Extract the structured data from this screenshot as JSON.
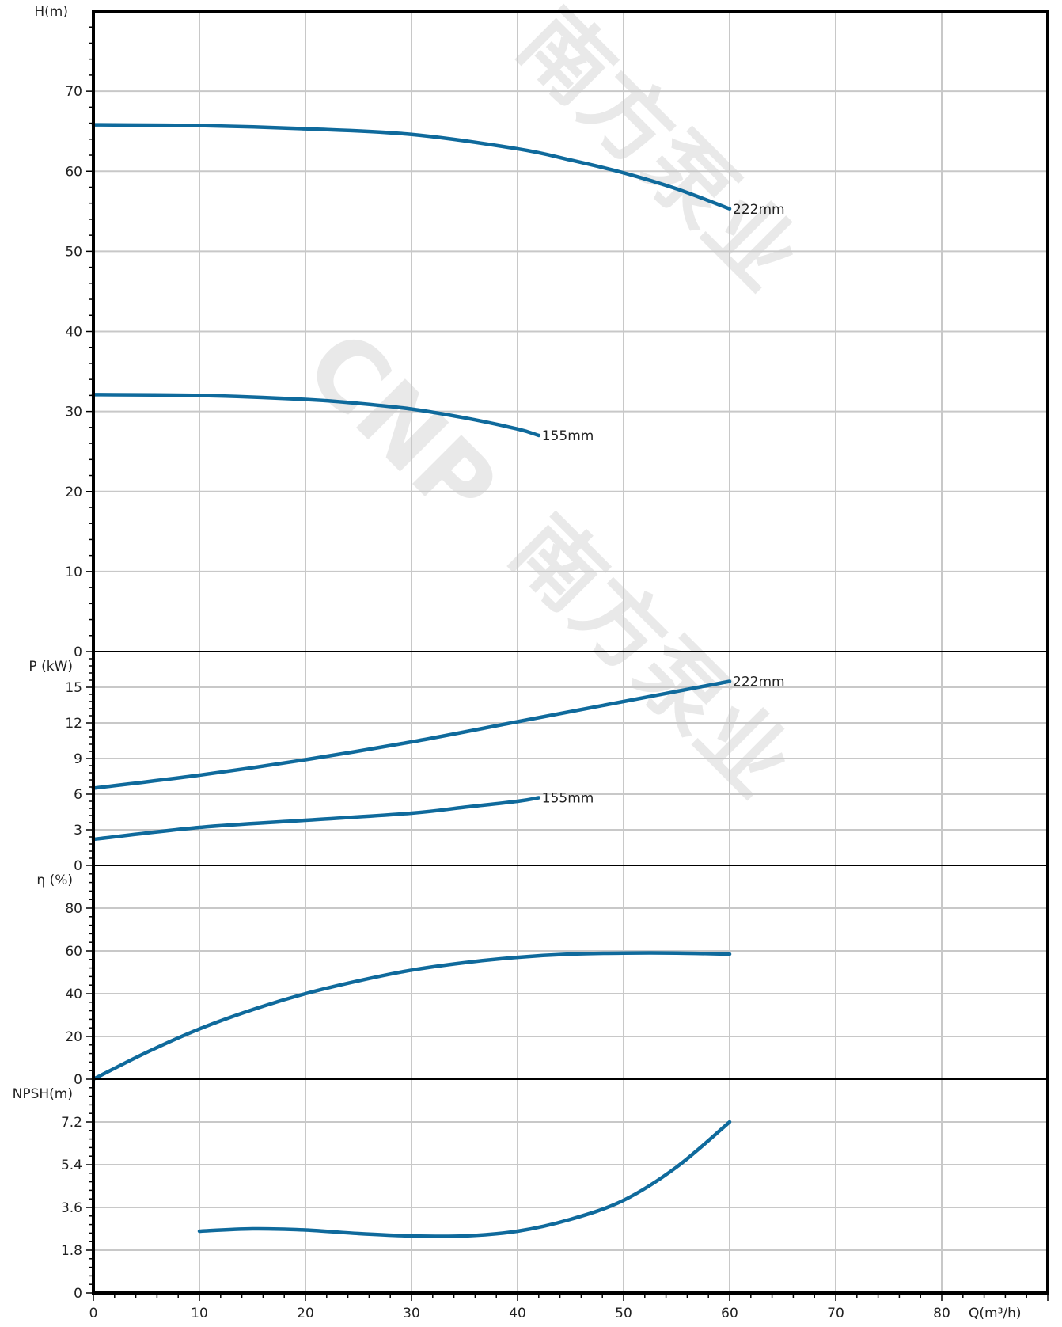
{
  "watermark": {
    "logo_text": "CNP",
    "brand_text": "南方泵业"
  },
  "chart_data": [
    {
      "type": "line",
      "ylabel": "H(m)",
      "ylim": [
        0,
        80
      ],
      "yticks": [
        0,
        10,
        20,
        30,
        40,
        50,
        60,
        70
      ],
      "series": [
        {
          "name": "222mm",
          "x": [
            0,
            10,
            20,
            30,
            40,
            45,
            50,
            55,
            60
          ],
          "y": [
            65.8,
            65.7,
            65.3,
            64.6,
            62.8,
            61.4,
            59.8,
            57.8,
            55.3
          ]
        },
        {
          "name": "155mm",
          "x": [
            0,
            10,
            20,
            25,
            30,
            35,
            40,
            42
          ],
          "y": [
            32.1,
            32.0,
            31.5,
            31.0,
            30.3,
            29.2,
            27.8,
            27.0
          ]
        }
      ]
    },
    {
      "type": "line",
      "ylabel": "P (kW)",
      "ylim": [
        0,
        18
      ],
      "yticks": [
        0,
        3,
        6,
        9,
        12,
        15
      ],
      "series": [
        {
          "name": "222mm",
          "x": [
            0,
            10,
            20,
            30,
            40,
            50,
            60
          ],
          "y": [
            6.5,
            7.6,
            8.9,
            10.4,
            12.1,
            13.8,
            15.5
          ]
        },
        {
          "name": "155mm",
          "x": [
            0,
            10,
            20,
            30,
            35,
            40,
            42
          ],
          "y": [
            2.2,
            3.2,
            3.8,
            4.4,
            4.9,
            5.4,
            5.7
          ]
        }
      ]
    },
    {
      "type": "line",
      "ylabel": "η (%)",
      "ylim": [
        0,
        100
      ],
      "yticks": [
        0,
        20,
        40,
        60,
        80
      ],
      "series": [
        {
          "x": [
            0,
            5,
            10,
            15,
            20,
            25,
            30,
            35,
            40,
            45,
            50,
            55,
            60
          ],
          "y": [
            0,
            12.5,
            23.5,
            32.5,
            40,
            46,
            51,
            54.5,
            57,
            58.5,
            59,
            59,
            58.5
          ]
        }
      ]
    },
    {
      "type": "line",
      "ylabel": "NPSH(m)",
      "ylim": [
        0,
        9
      ],
      "yticks": [
        0,
        1.8,
        3.6,
        5.4,
        7.2
      ],
      "x_axis_label": "Q(m³/h)",
      "xlim": [
        0,
        90
      ],
      "xticks": [
        0,
        10,
        20,
        30,
        40,
        50,
        60,
        70,
        80
      ],
      "series": [
        {
          "x": [
            10,
            15,
            20,
            25,
            30,
            35,
            40,
            45,
            50,
            55,
            60
          ],
          "y": [
            2.6,
            2.7,
            2.65,
            2.5,
            2.4,
            2.4,
            2.6,
            3.1,
            3.9,
            5.3,
            7.2
          ]
        }
      ]
    }
  ]
}
